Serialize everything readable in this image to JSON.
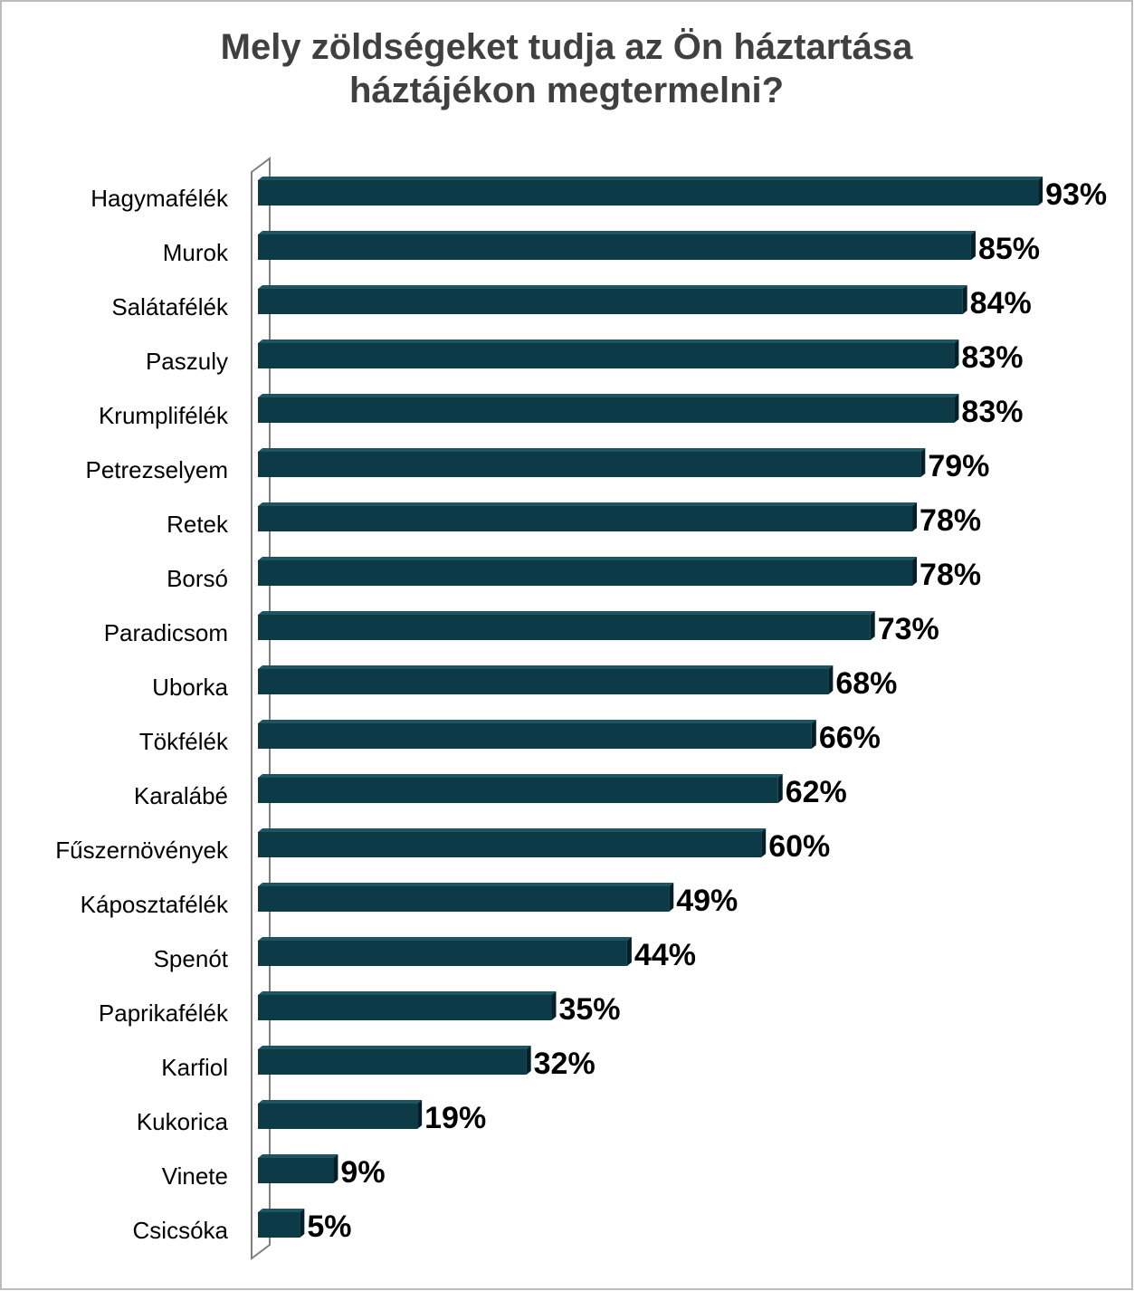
{
  "chart_data": {
    "type": "bar",
    "orientation": "horizontal",
    "title": "Mely zöldségeket tudja az Ön háztartása háztájékon megtermelni?",
    "categories": [
      "Hagymafélék",
      "Murok",
      "Salátafélék",
      "Paszuly",
      "Krumplifélék",
      "Petrezselyem",
      "Retek",
      "Borsó",
      "Paradicsom",
      "Uborka",
      "Tökfélék",
      "Karalábé",
      "Fűszernövények",
      "Káposztafélék",
      "Spenót",
      "Paprikafélék",
      "Karfiol",
      "Kukorica",
      "Vinete",
      "Csicsóka"
    ],
    "values": [
      93,
      85,
      84,
      83,
      83,
      79,
      78,
      78,
      73,
      68,
      66,
      62,
      60,
      49,
      44,
      35,
      32,
      19,
      9,
      5
    ],
    "value_labels": [
      "93%",
      "85%",
      "84%",
      "83%",
      "83%",
      "79%",
      "78%",
      "78%",
      "73%",
      "68%",
      "66%",
      "62%",
      "60%",
      "49%",
      "44%",
      "35%",
      "32%",
      "19%",
      "9%",
      "5%"
    ],
    "color": "#0d3a47",
    "xlim": [
      0,
      100
    ]
  }
}
